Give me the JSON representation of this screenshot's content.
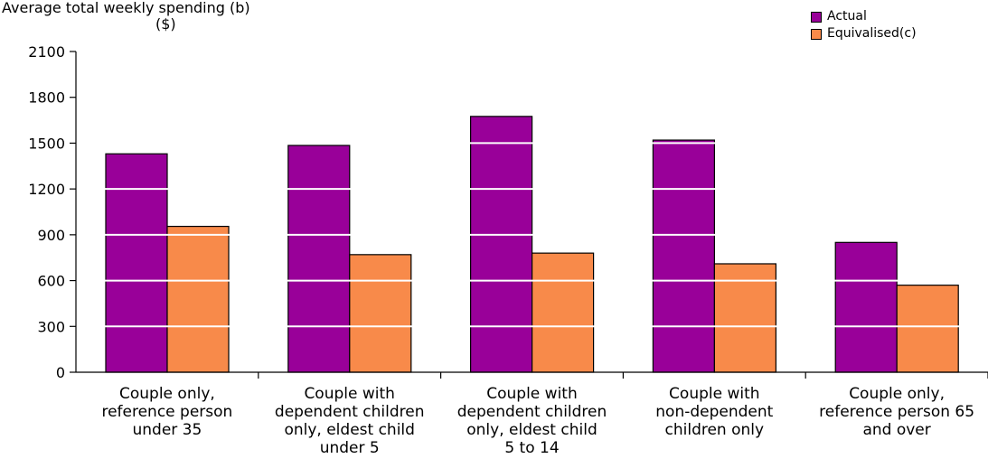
{
  "chart_data": {
    "type": "bar",
    "ylabel_line1": "Average total weekly spending (b)",
    "ylabel_line2": "($)",
    "title": "",
    "xlabel": "",
    "ylim": [
      0,
      2100
    ],
    "yticks": [
      0,
      300,
      600,
      900,
      1200,
      1500,
      1800,
      2100
    ],
    "grid": true,
    "legend_position": "top-right",
    "categories": [
      [
        "Couple only,",
        "reference person",
        "under 35"
      ],
      [
        "Couple with",
        "dependent children",
        "only, eldest child",
        "under 5"
      ],
      [
        "Couple with",
        "dependent children",
        "only, eldest child",
        "5 to 14"
      ],
      [
        "Couple with",
        "non-dependent",
        "children only"
      ],
      [
        "Couple only,",
        "reference person 65",
        "and over"
      ]
    ],
    "series": [
      {
        "name": "Actual",
        "color": "#990099",
        "values": [
          1430,
          1485,
          1675,
          1520,
          850
        ]
      },
      {
        "name": "Equivalised(c)",
        "color": "#f88a4a",
        "values": [
          955,
          770,
          780,
          710,
          570
        ]
      }
    ]
  }
}
